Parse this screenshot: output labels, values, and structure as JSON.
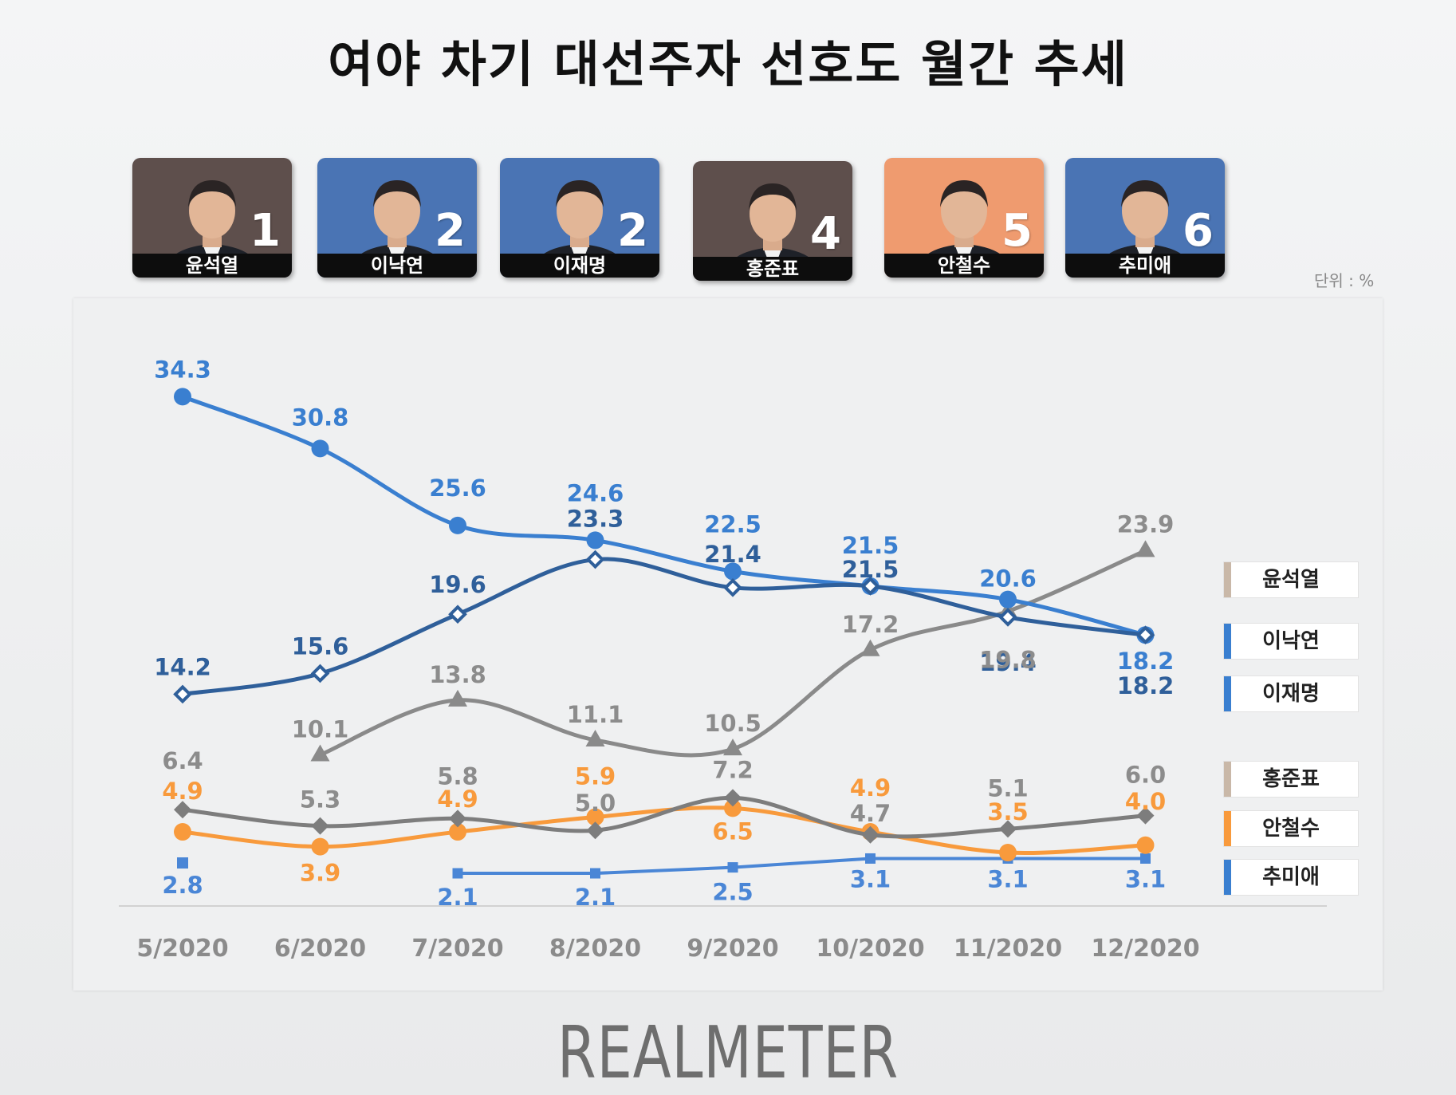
{
  "title": "여야 차기 대선주자 선호도 월간 추세",
  "unit_label": "단위 : %",
  "brand": "REALMETER",
  "candidates": [
    {
      "name": "윤석열",
      "rank": "1",
      "bg": "#5e4f4c"
    },
    {
      "name": "이낙연",
      "rank": "2",
      "bg": "#4a74b4"
    },
    {
      "name": "이재명",
      "rank": "2",
      "bg": "#4a74b4"
    },
    {
      "name": "홍준표",
      "rank": "4",
      "bg": "#5e4f4c"
    },
    {
      "name": "안철수",
      "rank": "5",
      "bg": "#ef9b6f"
    },
    {
      "name": "추미애",
      "rank": "6",
      "bg": "#4a74b4"
    }
  ],
  "legend": [
    {
      "label": "윤석열",
      "color": "#c9b8a8"
    },
    {
      "label": "이낙연",
      "color": "#3a7fd0"
    },
    {
      "label": "이재명",
      "color": "#3a7fd0"
    },
    {
      "label": "홍준표",
      "color": "#c9b8a8"
    },
    {
      "label": "안철수",
      "color": "#f89a3c"
    },
    {
      "label": "추미애",
      "color": "#3a7fd0"
    }
  ],
  "chart_data": {
    "type": "line",
    "title": "여야 차기 대선주자 선호도 월간 추세",
    "x": [
      "5/2020",
      "6/2020",
      "7/2020",
      "8/2020",
      "9/2020",
      "10/2020",
      "11/2020",
      "12/2020"
    ],
    "unit": "%",
    "series": [
      {
        "name": "이낙연",
        "color": "#3a7fd0",
        "marker": "circle",
        "values": [
          34.3,
          30.8,
          25.6,
          24.6,
          22.5,
          21.5,
          20.6,
          18.2
        ]
      },
      {
        "name": "이재명",
        "color": "#2f5f9a",
        "marker": "diamond-open",
        "values": [
          14.2,
          15.6,
          19.6,
          23.3,
          21.4,
          21.5,
          19.4,
          18.2
        ]
      },
      {
        "name": "윤석열",
        "color": "#8a8a8a",
        "marker": "triangle",
        "values": [
          null,
          10.1,
          13.8,
          11.1,
          10.5,
          17.2,
          19.8,
          23.9
        ]
      },
      {
        "name": "홍준표",
        "color": "#7d7d7d",
        "marker": "diamond",
        "values": [
          6.4,
          5.3,
          5.8,
          5.0,
          7.2,
          4.7,
          5.1,
          6.0
        ]
      },
      {
        "name": "안철수",
        "color": "#f89a3c",
        "marker": "circle",
        "values": [
          4.9,
          3.9,
          4.9,
          5.9,
          6.5,
          4.9,
          3.5,
          4.0
        ]
      },
      {
        "name": "추미애",
        "color": "#4a86d6",
        "marker": "square",
        "values": [
          2.8,
          null,
          2.1,
          2.1,
          2.5,
          3.1,
          3.1,
          3.1
        ]
      }
    ]
  }
}
